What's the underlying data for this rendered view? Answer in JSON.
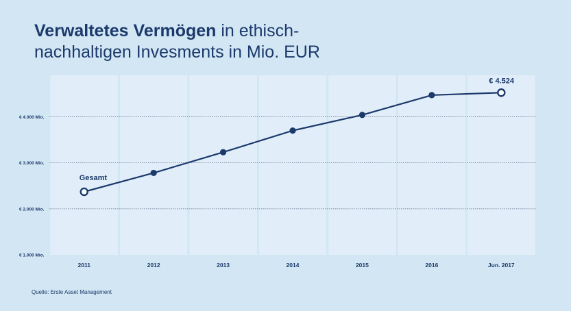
{
  "title": {
    "bold": "Verwaltetes Vermögen",
    "rest": "in ethisch-nachhaltigen Invesments in Mio. EUR"
  },
  "source": "Quelle: Erste Asset Management",
  "colors": {
    "background": "#d3e6f4",
    "plot_column": "#e1eef9",
    "plot_gap": "#d3e6f4",
    "line": "#1b3a6b",
    "text": "#1b3a6b"
  },
  "chart_data": {
    "type": "line",
    "title": "Verwaltetes Vermögen in ethisch-nachhaltigen Invesments in Mio. EUR",
    "xlabel": "",
    "ylabel": "",
    "categories": [
      "2011",
      "2012",
      "2013",
      "2014",
      "2015",
      "2016",
      "Jun. 2017"
    ],
    "series": [
      {
        "name": "Gesamt",
        "values": [
          2370,
          2780,
          3230,
          3700,
          4040,
          4470,
          4524
        ]
      }
    ],
    "ylim": [
      1000,
      4900
    ],
    "yticks": [
      1000,
      2000,
      3000,
      4000
    ],
    "ytick_labels": [
      "€ 1.000 Mio.",
      "€ 2.000 Mio.",
      "€ 3.000 Mio.",
      "€ 4.000 Mio."
    ],
    "grid": "horizontal dotted",
    "open_markers": [
      0,
      6
    ],
    "annotations": [
      {
        "text": "Gesamt",
        "point_index": 0
      },
      {
        "text": "€ 4.524",
        "point_index": 6
      }
    ]
  }
}
